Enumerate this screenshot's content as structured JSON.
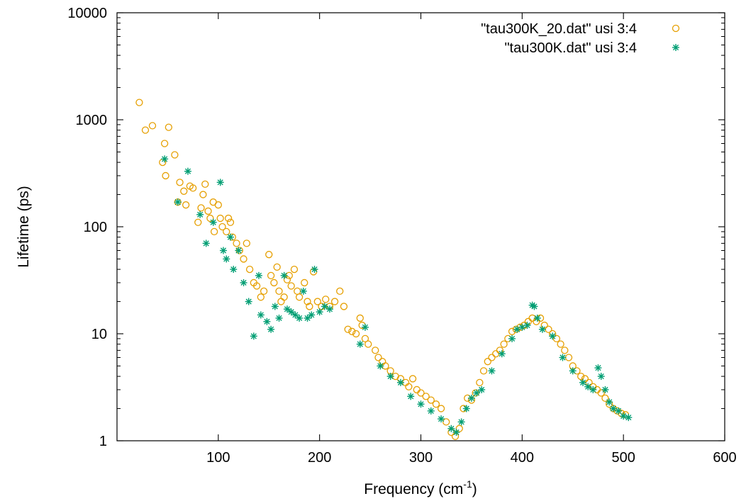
{
  "chart_data": {
    "type": "scatter",
    "xlabel": "Frequency (cm",
    "xlabel_sup": "-1",
    "xlabel_end": ")",
    "ylabel": "Lifetime (ps)",
    "xlim": [
      0,
      600
    ],
    "ylim": [
      1,
      10000
    ],
    "yscale": "log",
    "xticks": [
      100,
      200,
      300,
      400,
      500,
      600
    ],
    "yticks": [
      1,
      10,
      100,
      1000,
      10000
    ],
    "xtick_labels": [
      "100",
      "200",
      "300",
      "400",
      "500",
      "600"
    ],
    "ytick_labels": [
      "1",
      "10",
      "100",
      "1000",
      "10000"
    ],
    "grid": false,
    "legend": "top-right",
    "series": [
      {
        "name": "\"tau300K_20.dat\" usi 3:4",
        "marker": "circle",
        "color": "#e69f00",
        "points": [
          [
            22,
            1450
          ],
          [
            28,
            800
          ],
          [
            35,
            880
          ],
          [
            45,
            400
          ],
          [
            47,
            600
          ],
          [
            48,
            300
          ],
          [
            51,
            850
          ],
          [
            57,
            470
          ],
          [
            60,
            170
          ],
          [
            62,
            260
          ],
          [
            66,
            215
          ],
          [
            68,
            160
          ],
          [
            72,
            240
          ],
          [
            75,
            230
          ],
          [
            80,
            110
          ],
          [
            83,
            150
          ],
          [
            85,
            200
          ],
          [
            87,
            250
          ],
          [
            90,
            140
          ],
          [
            92,
            120
          ],
          [
            95,
            170
          ],
          [
            96,
            90
          ],
          [
            100,
            160
          ],
          [
            102,
            120
          ],
          [
            104,
            100
          ],
          [
            108,
            90
          ],
          [
            110,
            120
          ],
          [
            112,
            110
          ],
          [
            114,
            80
          ],
          [
            118,
            70
          ],
          [
            121,
            60
          ],
          [
            125,
            50
          ],
          [
            128,
            70
          ],
          [
            131,
            40
          ],
          [
            135,
            30
          ],
          [
            138,
            28
          ],
          [
            142,
            22
          ],
          [
            145,
            25
          ],
          [
            150,
            55
          ],
          [
            152,
            35
          ],
          [
            155,
            30
          ],
          [
            158,
            42
          ],
          [
            160,
            25
          ],
          [
            162,
            20
          ],
          [
            165,
            22
          ],
          [
            168,
            32
          ],
          [
            170,
            35
          ],
          [
            172,
            28
          ],
          [
            175,
            40
          ],
          [
            178,
            25
          ],
          [
            180,
            22
          ],
          [
            185,
            30
          ],
          [
            188,
            20
          ],
          [
            190,
            18
          ],
          [
            194,
            38
          ],
          [
            198,
            20
          ],
          [
            202,
            18
          ],
          [
            206,
            21
          ],
          [
            210,
            18
          ],
          [
            215,
            20
          ],
          [
            220,
            25
          ],
          [
            224,
            18
          ],
          [
            228,
            11
          ],
          [
            232,
            10.5
          ],
          [
            236,
            10
          ],
          [
            240,
            14
          ],
          [
            242,
            12
          ],
          [
            245,
            9
          ],
          [
            248,
            8
          ],
          [
            255,
            7
          ],
          [
            258,
            6
          ],
          [
            262,
            5.5
          ],
          [
            265,
            5
          ],
          [
            270,
            4.5
          ],
          [
            275,
            4
          ],
          [
            280,
            3.8
          ],
          [
            285,
            3.5
          ],
          [
            288,
            3.2
          ],
          [
            292,
            3.8
          ],
          [
            296,
            3
          ],
          [
            300,
            2.8
          ],
          [
            305,
            2.6
          ],
          [
            310,
            2.4
          ],
          [
            315,
            2.2
          ],
          [
            320,
            2
          ],
          [
            325,
            1.5
          ],
          [
            330,
            1.2
          ],
          [
            334,
            1.1
          ],
          [
            338,
            1.3
          ],
          [
            342,
            2
          ],
          [
            346,
            2.5
          ],
          [
            350,
            2.4
          ],
          [
            354,
            2.8
          ],
          [
            358,
            3.5
          ],
          [
            362,
            4.5
          ],
          [
            366,
            5.5
          ],
          [
            370,
            6
          ],
          [
            374,
            6.5
          ],
          [
            378,
            7
          ],
          [
            382,
            8
          ],
          [
            386,
            9
          ],
          [
            390,
            10.5
          ],
          [
            394,
            11
          ],
          [
            398,
            11.5
          ],
          [
            402,
            12
          ],
          [
            406,
            13
          ],
          [
            410,
            14
          ],
          [
            414,
            13
          ],
          [
            418,
            14
          ],
          [
            422,
            12
          ],
          [
            426,
            11
          ],
          [
            430,
            10
          ],
          [
            434,
            9
          ],
          [
            438,
            8
          ],
          [
            442,
            7
          ],
          [
            446,
            6
          ],
          [
            450,
            5
          ],
          [
            454,
            4.5
          ],
          [
            458,
            4
          ],
          [
            462,
            3.8
          ],
          [
            466,
            3.5
          ],
          [
            470,
            3.2
          ],
          [
            474,
            3
          ],
          [
            478,
            2.8
          ],
          [
            482,
            2.5
          ],
          [
            486,
            2.2
          ],
          [
            490,
            2
          ],
          [
            494,
            1.9
          ],
          [
            498,
            1.8
          ],
          [
            502,
            1.75
          ]
        ]
      },
      {
        "name": "\"tau300K.dat\" usi 3:4",
        "marker": "asterisk",
        "color": "#009e73",
        "points": [
          [
            47,
            430
          ],
          [
            70,
            330
          ],
          [
            60,
            170
          ],
          [
            82,
            130
          ],
          [
            88,
            70
          ],
          [
            95,
            110
          ],
          [
            102,
            260
          ],
          [
            105,
            60
          ],
          [
            108,
            50
          ],
          [
            112,
            80
          ],
          [
            115,
            40
          ],
          [
            120,
            60
          ],
          [
            125,
            30
          ],
          [
            130,
            20
          ],
          [
            135,
            9.5
          ],
          [
            140,
            35
          ],
          [
            142,
            15
          ],
          [
            148,
            13
          ],
          [
            152,
            11
          ],
          [
            156,
            18
          ],
          [
            160,
            14
          ],
          [
            165,
            35
          ],
          [
            168,
            17
          ],
          [
            172,
            16
          ],
          [
            176,
            15
          ],
          [
            180,
            14
          ],
          [
            184,
            25
          ],
          [
            188,
            14
          ],
          [
            192,
            15
          ],
          [
            195,
            40
          ],
          [
            200,
            16
          ],
          [
            205,
            18
          ],
          [
            210,
            17
          ],
          [
            240,
            8
          ],
          [
            245,
            11.5
          ],
          [
            260,
            5
          ],
          [
            270,
            4
          ],
          [
            280,
            3.5
          ],
          [
            290,
            2.6
          ],
          [
            300,
            2.2
          ],
          [
            310,
            1.9
          ],
          [
            320,
            1.6
          ],
          [
            330,
            1.3
          ],
          [
            335,
            1.2
          ],
          [
            340,
            1.5
          ],
          [
            345,
            2
          ],
          [
            350,
            2.5
          ],
          [
            355,
            2.8
          ],
          [
            360,
            3
          ],
          [
            370,
            4.5
          ],
          [
            380,
            6.5
          ],
          [
            390,
            9
          ],
          [
            395,
            11
          ],
          [
            400,
            11.5
          ],
          [
            405,
            12
          ],
          [
            410,
            18.5
          ],
          [
            412,
            18
          ],
          [
            415,
            14
          ],
          [
            420,
            11
          ],
          [
            430,
            9.5
          ],
          [
            440,
            6
          ],
          [
            450,
            4.5
          ],
          [
            460,
            3.5
          ],
          [
            465,
            3.2
          ],
          [
            470,
            3
          ],
          [
            475,
            4.8
          ],
          [
            478,
            4
          ],
          [
            482,
            3
          ],
          [
            486,
            2.3
          ],
          [
            490,
            2
          ],
          [
            495,
            1.9
          ],
          [
            500,
            1.7
          ],
          [
            505,
            1.65
          ]
        ]
      }
    ]
  }
}
